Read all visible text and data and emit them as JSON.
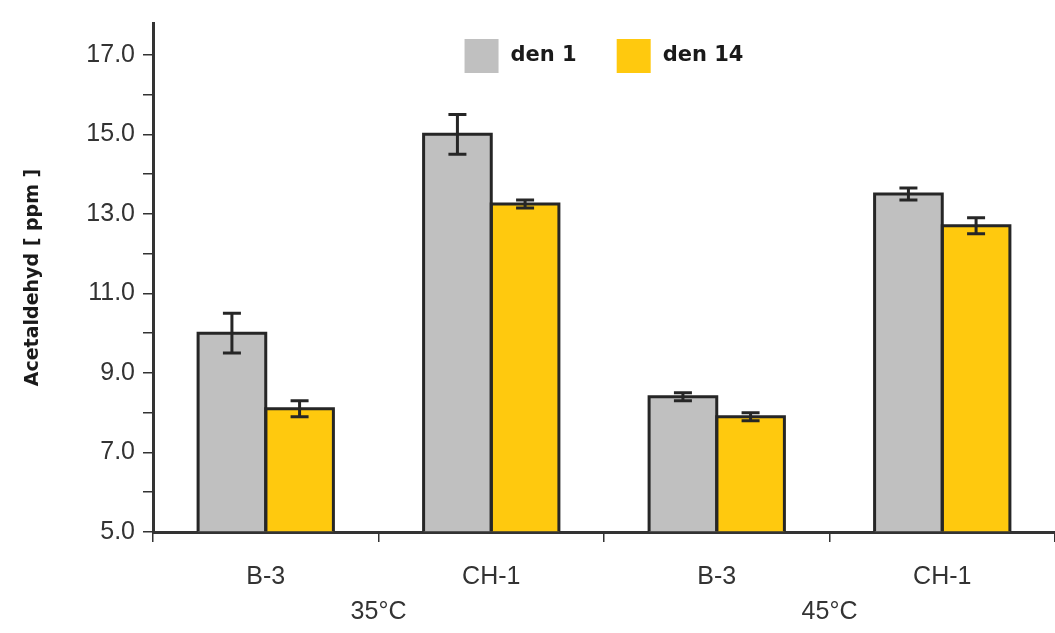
{
  "chart_data": {
    "type": "bar",
    "ylabel": "Acetaldehyd [ ppm ]",
    "categories": [
      "B-3",
      "CH-1",
      "B-3",
      "CH-1"
    ],
    "series": [
      {
        "name": "den 1",
        "color": "#c0c0c0",
        "values": [
          10.0,
          15.0,
          8.4,
          13.5
        ],
        "errors": [
          0.5,
          0.5,
          0.1,
          0.15
        ]
      },
      {
        "name": "den 14",
        "color": "#ffc90e",
        "values": [
          8.1,
          13.25,
          7.9,
          12.7
        ],
        "errors": [
          0.2,
          0.1,
          0.1,
          0.2
        ]
      }
    ],
    "ylim": [
      5,
      17.8
    ],
    "yticks": [
      {
        "value": 5,
        "label": "5.0"
      },
      {
        "value": 6,
        "label": null
      },
      {
        "value": 7,
        "label": "7.0"
      },
      {
        "value": 8,
        "label": null
      },
      {
        "value": 9,
        "label": "9.0"
      },
      {
        "value": 10,
        "label": null
      },
      {
        "value": 11,
        "label": "11.0"
      },
      {
        "value": 12,
        "label": null
      },
      {
        "value": 13,
        "label": "13.0"
      },
      {
        "value": 14,
        "label": null
      },
      {
        "value": 15,
        "label": "15.0"
      },
      {
        "value": 16,
        "label": null
      },
      {
        "value": 17,
        "label": "17.0"
      }
    ],
    "legend": "top",
    "annotations": [
      "35°C",
      "45°C"
    ]
  }
}
